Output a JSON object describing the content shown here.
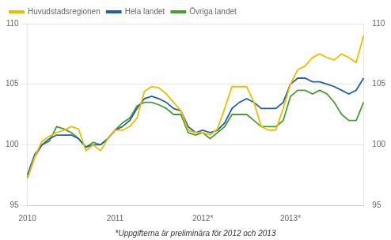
{
  "chart_data": {
    "type": "line",
    "annotations": [
      "*Uppgifterna är preliminära för 2012 och 2013"
    ],
    "categories": [
      "2010",
      null,
      null,
      null,
      null,
      null,
      null,
      null,
      null,
      null,
      null,
      null,
      "2011",
      null,
      null,
      null,
      null,
      null,
      null,
      null,
      null,
      null,
      null,
      null,
      "2012*",
      null,
      null,
      null,
      null,
      null,
      null,
      null,
      null,
      null,
      null,
      null,
      "2013*",
      null,
      null,
      null,
      null,
      null,
      null,
      null,
      null,
      null,
      null
    ],
    "series": [
      {
        "name": "Huvudstadsregionen",
        "color": "#E8C000",
        "values": [
          97.2,
          99.0,
          100.3,
          100.7,
          101.0,
          101.2,
          101.5,
          101.3,
          99.5,
          100.0,
          99.5,
          100.5,
          101.2,
          101.2,
          101.5,
          102.2,
          104.4,
          104.8,
          104.7,
          104.2,
          103.5,
          102.8,
          101.2,
          101.0,
          101.0,
          100.8,
          101.3,
          103.0,
          104.8,
          104.8,
          104.8,
          103.5,
          101.5,
          101.2,
          101.2,
          103.0,
          105.0,
          106.2,
          106.5,
          107.2,
          107.5,
          107.2,
          107.0,
          107.5,
          107.2,
          106.8,
          109.0
        ]
      },
      {
        "name": "Hela landet",
        "color": "#2060A0",
        "values": [
          97.5,
          99.2,
          100.0,
          100.5,
          100.8,
          100.8,
          100.8,
          100.5,
          99.8,
          100.0,
          100.0,
          100.5,
          101.2,
          101.5,
          102.0,
          103.0,
          103.8,
          104.0,
          103.8,
          103.5,
          103.0,
          102.8,
          101.5,
          101.0,
          101.2,
          101.0,
          101.2,
          101.8,
          103.0,
          103.5,
          103.8,
          103.5,
          103.0,
          103.0,
          103.0,
          103.5,
          105.0,
          105.5,
          105.5,
          105.2,
          105.2,
          105.0,
          104.8,
          104.5,
          104.2,
          104.5,
          105.5
        ]
      },
      {
        "name": "Övriga landet",
        "color": "#4A9A3A",
        "values": [
          97.3,
          99.0,
          100.0,
          100.3,
          101.5,
          101.3,
          101.0,
          100.5,
          99.8,
          100.2,
          100.0,
          100.5,
          101.2,
          101.8,
          102.2,
          103.2,
          103.5,
          103.5,
          103.3,
          103.0,
          102.5,
          102.5,
          101.0,
          100.8,
          101.0,
          100.5,
          101.0,
          101.5,
          102.5,
          102.5,
          102.5,
          102.0,
          101.5,
          101.5,
          101.5,
          102.0,
          104.0,
          104.5,
          104.5,
          104.2,
          104.5,
          104.2,
          103.5,
          102.5,
          102.0,
          102.0,
          103.5
        ]
      }
    ],
    "ylim": [
      95,
      110
    ],
    "yticks": [
      95,
      100,
      105,
      110
    ],
    "y2lim": [
      95,
      110
    ],
    "y2ticks": [
      95,
      100,
      105,
      110
    ],
    "grid": true,
    "legend": "upper left"
  }
}
